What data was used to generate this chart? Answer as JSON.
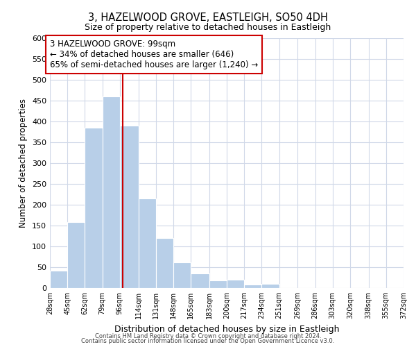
{
  "title": "3, HAZELWOOD GROVE, EASTLEIGH, SO50 4DH",
  "subtitle": "Size of property relative to detached houses in Eastleigh",
  "xlabel": "Distribution of detached houses by size in Eastleigh",
  "ylabel": "Number of detached properties",
  "bar_edges": [
    28,
    45,
    62,
    79,
    96,
    114,
    131,
    148,
    165,
    183,
    200,
    217,
    234,
    251,
    269,
    286,
    303,
    320,
    338,
    355,
    372
  ],
  "bar_heights": [
    42,
    158,
    385,
    460,
    390,
    215,
    120,
    62,
    35,
    18,
    20,
    8,
    10,
    0,
    0,
    0,
    0,
    0,
    0,
    0
  ],
  "bar_color": "#b8cfe8",
  "bar_edge_color": "#ffffff",
  "property_line_x": 99,
  "property_line_color": "#cc0000",
  "annotation_line1": "3 HAZELWOOD GROVE: 99sqm",
  "annotation_line2": "← 34% of detached houses are smaller (646)",
  "annotation_line3": "65% of semi-detached houses are larger (1,240) →",
  "annotation_box_color": "#ffffff",
  "annotation_box_edge": "#cc0000",
  "ylim": [
    0,
    600
  ],
  "yticks": [
    0,
    50,
    100,
    150,
    200,
    250,
    300,
    350,
    400,
    450,
    500,
    550,
    600
  ],
  "tick_labels": [
    "28sqm",
    "45sqm",
    "62sqm",
    "79sqm",
    "96sqm",
    "114sqm",
    "131sqm",
    "148sqm",
    "165sqm",
    "183sqm",
    "200sqm",
    "217sqm",
    "234sqm",
    "251sqm",
    "269sqm",
    "286sqm",
    "303sqm",
    "320sqm",
    "338sqm",
    "355sqm",
    "372sqm"
  ],
  "footer_line1": "Contains HM Land Registry data © Crown copyright and database right 2024.",
  "footer_line2": "Contains public sector information licensed under the Open Government Licence v3.0.",
  "background_color": "#ffffff",
  "grid_color": "#d0d8e8"
}
